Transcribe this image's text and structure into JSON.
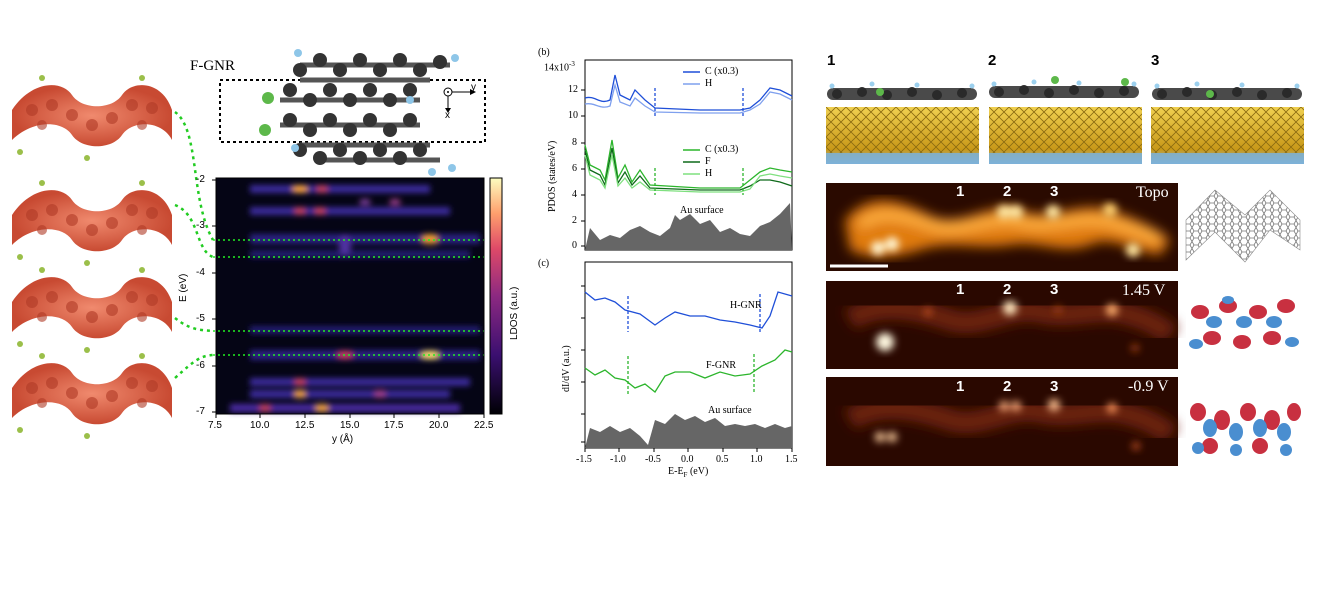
{
  "panel_left": {
    "title": "F-GNR",
    "axis_x_label": "x",
    "axis_y_label": "y",
    "heatmap": {
      "ylabel": "E (eV)",
      "xlabel": "y (Å)",
      "colorbar_label": "LDOS (a.u.)",
      "yticks": [
        "-2",
        "-3",
        "-4",
        "-5",
        "-6",
        "-7"
      ],
      "xticks": [
        "7.5",
        "10.0",
        "12.5",
        "15.0",
        "17.5",
        "20.0",
        "22.5"
      ]
    }
  },
  "panel_b": {
    "label": "(b)",
    "ylabel": "PDOS (states/eV)",
    "yexp": "14x10",
    "yexp_sup": "-3",
    "yticks": [
      "12",
      "10",
      "8",
      "6",
      "4",
      "2",
      "0"
    ],
    "legend_top": [
      "C (x0.3)",
      "H"
    ],
    "legend_mid": [
      "C (x0.3)",
      "F",
      "H"
    ],
    "surface_label": "Au surface"
  },
  "panel_c": {
    "label": "(c)",
    "ylabel": "dI/dV (a.u.)",
    "xlabel": "E-E",
    "xlabel_sub": "F",
    "xlabel_unit": " (eV)",
    "xticks": [
      "-1.5",
      "-1.0",
      "-0.5",
      "0.0",
      "0.5",
      "1.0",
      "1.5"
    ],
    "curve_labels": [
      "H-GNR",
      "F-GNR",
      "Au surface"
    ]
  },
  "panel_right": {
    "config_numbers": [
      "1",
      "2",
      "3"
    ],
    "maps": [
      {
        "label": "Topo",
        "numbers": [
          "1",
          "2",
          "3"
        ]
      },
      {
        "label": "1.45 V",
        "numbers": [
          "1",
          "2",
          "3"
        ]
      },
      {
        "label": "-0.9 V",
        "numbers": [
          "1",
          "2",
          "3"
        ]
      }
    ]
  },
  "colors": {
    "blue_dark": "#1f4fd8",
    "blue_light": "#7fa0ee",
    "green_dark": "#0f6a1a",
    "green_mid": "#2cb52c",
    "green_light": "#7fe07f",
    "orange_iso": "#e0644a",
    "gold": "#d4a820"
  }
}
